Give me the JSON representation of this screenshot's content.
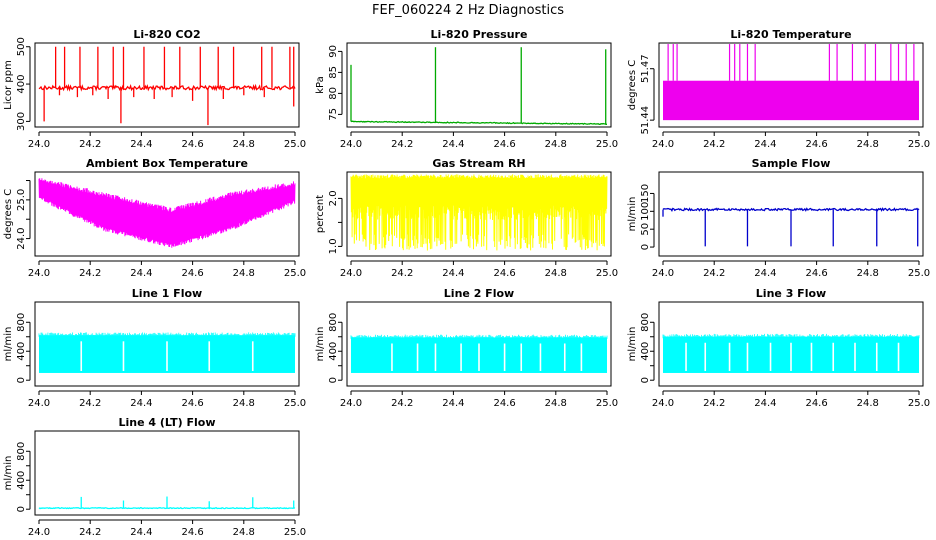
{
  "figure_title": "FEF_060224  2 Hz Diagnostics",
  "chart_data": [
    {
      "type": "line",
      "title": "Li-820 CO2",
      "xlabel": "",
      "ylabel": "Licor ppm",
      "color": "#ff0000",
      "xlim": [
        24.0,
        25.0
      ],
      "ylim": [
        285,
        510
      ],
      "xticks": [
        24.0,
        24.2,
        24.4,
        24.6,
        24.8,
        25.0
      ],
      "yticks": [
        300,
        400,
        500
      ],
      "ytick_labels": [
        "300",
        "400",
        "500"
      ],
      "series": [
        {
          "baseline": 390,
          "noise": 5,
          "spikes_up": [
            [
              24.065,
              500
            ],
            [
              24.1,
              500
            ],
            [
              24.16,
              500
            ],
            [
              24.23,
              500
            ],
            [
              24.29,
              500
            ],
            [
              24.33,
              500
            ],
            [
              24.41,
              500
            ],
            [
              24.49,
              500
            ],
            [
              24.55,
              500
            ],
            [
              24.63,
              500
            ],
            [
              24.7,
              500
            ],
            [
              24.76,
              500
            ],
            [
              24.87,
              500
            ],
            [
              24.91,
              500
            ],
            [
              24.98,
              500
            ],
            [
              24.995,
              500
            ]
          ],
          "spikes_down": [
            [
              24.02,
              300
            ],
            [
              24.08,
              370
            ],
            [
              24.15,
              365
            ],
            [
              24.21,
              370
            ],
            [
              24.27,
              360
            ],
            [
              24.32,
              295
            ],
            [
              24.37,
              365
            ],
            [
              24.45,
              360
            ],
            [
              24.52,
              365
            ],
            [
              24.6,
              355
            ],
            [
              24.66,
              290
            ],
            [
              24.72,
              360
            ],
            [
              24.8,
              370
            ],
            [
              24.88,
              365
            ],
            [
              24.995,
              340
            ]
          ]
        }
      ]
    },
    {
      "type": "line",
      "title": "Li-820 Pressure",
      "xlabel": "",
      "ylabel": "kPa",
      "color": "#00aa00",
      "xlim": [
        24.0,
        25.0
      ],
      "ylim": [
        72,
        92
      ],
      "xticks": [
        24.0,
        24.2,
        24.4,
        24.6,
        24.8,
        25.0
      ],
      "yticks": [
        75,
        80,
        85,
        90
      ],
      "ytick_labels": [
        "75",
        "80",
        "85",
        "90"
      ],
      "series": [
        {
          "start": 73.3,
          "end": 72.7,
          "noise": 0.1,
          "spikes_up": [
            [
              24.0,
              86.8
            ],
            [
              24.33,
              91.0
            ],
            [
              24.665,
              91.0
            ],
            [
              24.995,
              90.5
            ]
          ]
        }
      ]
    },
    {
      "type": "area",
      "title": "Li-820 Temperature",
      "xlabel": "",
      "ylabel": "degrees C",
      "color": "#ee00ee",
      "xlim": [
        24.0,
        25.0
      ],
      "ylim": [
        51.436,
        51.485
      ],
      "xticks": [
        24.0,
        24.2,
        24.4,
        24.6,
        24.8,
        25.0
      ],
      "yticks": [
        51.44,
        51.47
      ],
      "ytick_labels": [
        "51.44",
        "51.47"
      ],
      "series": [
        {
          "low": 51.44,
          "high": 51.463,
          "spikes_up": [
            24.02,
            24.04,
            24.055,
            24.26,
            24.28,
            24.3,
            24.33,
            24.36,
            24.65,
            24.68,
            24.74,
            24.79,
            24.83,
            24.89,
            24.92,
            24.95,
            24.98
          ]
        }
      ]
    },
    {
      "type": "area",
      "title": "Ambient Box Temperature",
      "xlabel": "",
      "ylabel": "degrees C",
      "color": "#ff00ff",
      "xlim": [
        24.0,
        25.0
      ],
      "ylim": [
        23.55,
        25.72
      ],
      "xticks": [
        24.0,
        24.2,
        24.4,
        24.6,
        24.8,
        25.0
      ],
      "yticks": [
        24.0,
        24.5,
        25.0,
        25.5
      ],
      "ytick_labels": [
        "24.0",
        "",
        "25.0",
        ""
      ],
      "series": [
        {
          "upper": [
            [
              24.0,
              25.6
            ],
            [
              24.25,
              25.2
            ],
            [
              24.52,
              24.8
            ],
            [
              24.75,
              25.2
            ],
            [
              25.0,
              25.5
            ]
          ],
          "lower": [
            [
              24.0,
              25.0
            ],
            [
              24.25,
              24.2
            ],
            [
              24.52,
              23.75
            ],
            [
              24.75,
              24.2
            ],
            [
              25.0,
              24.9
            ]
          ]
        }
      ]
    },
    {
      "type": "area",
      "title": "Gas Stream RH",
      "xlabel": "",
      "ylabel": "percent",
      "color": "#ffff00",
      "xlim": [
        24.0,
        25.0
      ],
      "ylim": [
        0.8,
        2.55
      ],
      "xticks": [
        24.0,
        24.2,
        24.4,
        24.6,
        24.8,
        25.0
      ],
      "yticks": [
        1.0,
        1.5,
        2.0
      ],
      "ytick_labels": [
        "1.0",
        "",
        "2.0"
      ],
      "series": [
        {
          "upper": 2.5,
          "band_low": 1.55,
          "dip_low": 0.9
        }
      ]
    },
    {
      "type": "line",
      "title": "Sample Flow",
      "xlabel": "",
      "ylabel": "ml/min",
      "color": "#0000cc",
      "xlim": [
        24.0,
        25.0
      ],
      "ylim": [
        -25,
        210
      ],
      "xticks": [
        24.0,
        24.2,
        24.4,
        24.6,
        24.8,
        25.0
      ],
      "yticks": [
        0,
        50,
        100,
        150
      ],
      "ytick_labels": [
        "0",
        "50",
        "100",
        "150"
      ],
      "series": [
        {
          "baseline": 105,
          "noise": 3,
          "spikes_down": [
            [
              24.0,
              85
            ],
            [
              24.165,
              2
            ],
            [
              24.33,
              2
            ],
            [
              24.5,
              2
            ],
            [
              24.665,
              2
            ],
            [
              24.835,
              2
            ],
            [
              24.995,
              2
            ]
          ]
        }
      ]
    },
    {
      "type": "area",
      "title": "Line 1 Flow",
      "xlabel": "",
      "ylabel": "ml/min",
      "color": "#00ffff",
      "xlim": [
        24.0,
        25.0
      ],
      "ylim": [
        -80,
        1080
      ],
      "xticks": [
        24.0,
        24.2,
        24.4,
        24.6,
        24.8,
        25.0
      ],
      "yticks": [
        0,
        200,
        400,
        600,
        800
      ],
      "ytick_labels": [
        "0",
        "",
        "400",
        "",
        "800"
      ],
      "series": [
        {
          "high": 620,
          "low": 100,
          "gaps": [
            24.165,
            24.33,
            24.5,
            24.665,
            24.835
          ]
        }
      ]
    },
    {
      "type": "area",
      "title": "Line 2 Flow",
      "xlabel": "",
      "ylabel": "ml/min",
      "color": "#00ffff",
      "xlim": [
        24.0,
        25.0
      ],
      "ylim": [
        -80,
        1080
      ],
      "xticks": [
        24.0,
        24.2,
        24.4,
        24.6,
        24.8,
        25.0
      ],
      "yticks": [
        0,
        200,
        400,
        600,
        800
      ],
      "ytick_labels": [
        "0",
        "",
        "400",
        "",
        "800"
      ],
      "series": [
        {
          "high": 590,
          "low": 100,
          "gaps": [
            24.16,
            24.26,
            24.33,
            24.43,
            24.5,
            24.6,
            24.665,
            24.74,
            24.835,
            24.9
          ]
        }
      ]
    },
    {
      "type": "area",
      "title": "Line 3 Flow",
      "xlabel": "",
      "ylabel": "ml/min",
      "color": "#00ffff",
      "xlim": [
        24.0,
        25.0
      ],
      "ylim": [
        -80,
        1080
      ],
      "xticks": [
        24.0,
        24.2,
        24.4,
        24.6,
        24.8,
        25.0
      ],
      "yticks": [
        0,
        200,
        400,
        600,
        800
      ],
      "ytick_labels": [
        "0",
        "",
        "400",
        "",
        "800"
      ],
      "series": [
        {
          "high": 600,
          "low": 100,
          "gaps": [
            24.09,
            24.165,
            24.26,
            24.33,
            24.42,
            24.5,
            24.58,
            24.665,
            24.75,
            24.835,
            24.92
          ]
        }
      ]
    },
    {
      "type": "line",
      "title": "Line 4 (LT) Flow",
      "xlabel": "",
      "ylabel": "ml/min",
      "color": "#00ffff",
      "xlim": [
        24.0,
        25.0
      ],
      "ylim": [
        -80,
        1080
      ],
      "xticks": [
        24.0,
        24.2,
        24.4,
        24.6,
        24.8,
        25.0
      ],
      "yticks": [
        0,
        200,
        400,
        600,
        800
      ],
      "ytick_labels": [
        "0",
        "",
        "400",
        "",
        "800"
      ],
      "series": [
        {
          "baseline": 15,
          "noise": 6,
          "spikes_up": [
            [
              24.165,
              170
            ],
            [
              24.33,
              120
            ],
            [
              24.5,
              175
            ],
            [
              24.665,
              110
            ],
            [
              24.835,
              165
            ],
            [
              24.995,
              120
            ]
          ]
        }
      ]
    }
  ]
}
